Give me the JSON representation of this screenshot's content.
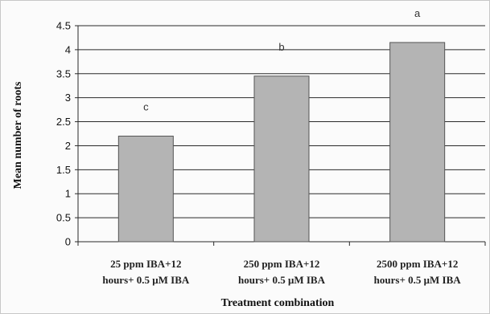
{
  "chart_data": {
    "type": "bar",
    "categories": [
      [
        "25 ppm IBA+12",
        "hours+ 0.5 μM IBA"
      ],
      [
        "250 ppm IBA+12",
        "hours+ 0.5 μM IBA"
      ],
      [
        "2500 ppm IBA+12",
        "hours+ 0.5 μM IBA"
      ]
    ],
    "values": [
      2.2,
      3.45,
      4.15
    ],
    "significance_labels": [
      "c",
      "b",
      "a"
    ],
    "title": "",
    "xlabel": "Treatment combination",
    "ylabel": "Mean number of roots",
    "ylim": [
      0,
      4.5
    ],
    "yticks": [
      "0",
      "0.5",
      "1",
      "1.5",
      "2",
      "2.5",
      "3",
      "3.5",
      "4",
      "4.5"
    ],
    "grid": true,
    "legend": "none",
    "colors": {
      "bar_fill": "#b4b4b4",
      "bar_stroke": "#555555",
      "grid": "#2a2a2a"
    }
  }
}
